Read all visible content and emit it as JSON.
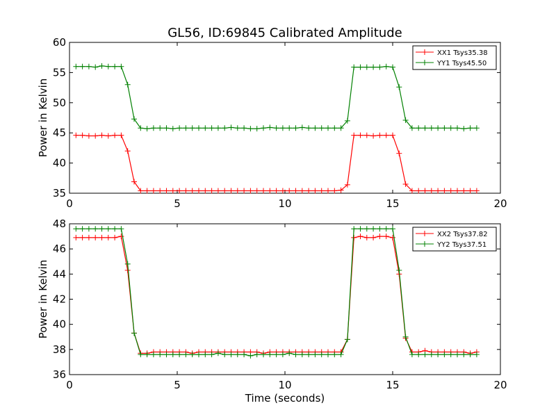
{
  "chart_data": [
    {
      "type": "line",
      "title": "GL56, ID:69845 Calibrated Amplitude",
      "xlabel": "",
      "ylabel": "Power in Kelvin",
      "xlim": [
        0,
        20
      ],
      "ylim": [
        35,
        60
      ],
      "xticks": [
        "0",
        "5",
        "10",
        "15",
        "20"
      ],
      "yticks": [
        "35",
        "40",
        "45",
        "50",
        "55",
        "60"
      ],
      "grid": false,
      "legend_position": "top-right",
      "x": [
        0.3,
        0.6,
        0.9,
        1.2,
        1.5,
        1.8,
        2.1,
        2.4,
        2.7,
        3.0,
        3.3,
        3.6,
        3.9,
        4.2,
        4.5,
        4.8,
        5.1,
        5.4,
        5.7,
        6.0,
        6.3,
        6.6,
        6.9,
        7.2,
        7.5,
        7.8,
        8.1,
        8.4,
        8.7,
        9.0,
        9.3,
        9.6,
        9.9,
        10.2,
        10.5,
        10.8,
        11.1,
        11.4,
        11.7,
        12.0,
        12.3,
        12.6,
        12.9,
        13.2,
        13.5,
        13.8,
        14.1,
        14.4,
        14.7,
        15.0,
        15.3,
        15.6,
        15.9,
        16.2,
        16.5,
        16.8,
        17.1,
        17.4,
        17.7,
        18.0,
        18.3,
        18.6,
        18.9
      ],
      "series": [
        {
          "name": "XX1 Tsys35.38",
          "color": "#ff0000",
          "values": [
            44.6,
            44.6,
            44.5,
            44.5,
            44.6,
            44.5,
            44.6,
            44.6,
            42.0,
            36.9,
            35.4,
            35.4,
            35.4,
            35.4,
            35.4,
            35.4,
            35.4,
            35.4,
            35.4,
            35.4,
            35.4,
            35.4,
            35.4,
            35.4,
            35.4,
            35.4,
            35.4,
            35.4,
            35.4,
            35.4,
            35.4,
            35.4,
            35.4,
            35.4,
            35.4,
            35.4,
            35.4,
            35.4,
            35.4,
            35.4,
            35.4,
            35.5,
            36.4,
            44.6,
            44.6,
            44.6,
            44.5,
            44.6,
            44.6,
            44.6,
            41.6,
            36.5,
            35.4,
            35.4,
            35.4,
            35.4,
            35.4,
            35.4,
            35.4,
            35.4,
            35.4,
            35.4,
            35.4
          ]
        },
        {
          "name": "YY1 Tsys45.50",
          "color": "#008000",
          "values": [
            56.0,
            56.0,
            56.0,
            55.9,
            56.1,
            56.0,
            56.0,
            56.0,
            53.0,
            47.3,
            45.8,
            45.7,
            45.8,
            45.8,
            45.8,
            45.7,
            45.8,
            45.8,
            45.8,
            45.8,
            45.8,
            45.8,
            45.8,
            45.8,
            45.9,
            45.8,
            45.8,
            45.7,
            45.7,
            45.8,
            45.9,
            45.8,
            45.8,
            45.8,
            45.8,
            45.9,
            45.8,
            45.8,
            45.8,
            45.8,
            45.8,
            45.8,
            47.0,
            55.9,
            55.9,
            55.9,
            55.9,
            55.9,
            56.0,
            55.9,
            52.6,
            47.1,
            45.8,
            45.8,
            45.8,
            45.8,
            45.8,
            45.8,
            45.8,
            45.8,
            45.7,
            45.8,
            45.8
          ]
        }
      ]
    },
    {
      "type": "line",
      "title": "",
      "xlabel": "Time (seconds)",
      "ylabel": "Power in Kelvin",
      "xlim": [
        0,
        20
      ],
      "ylim": [
        36,
        48
      ],
      "xticks": [
        "0",
        "5",
        "10",
        "15",
        "20"
      ],
      "yticks": [
        "36",
        "38",
        "40",
        "42",
        "44",
        "46",
        "48"
      ],
      "grid": false,
      "legend_position": "top-right",
      "x": [
        0.3,
        0.6,
        0.9,
        1.2,
        1.5,
        1.8,
        2.1,
        2.4,
        2.7,
        3.0,
        3.3,
        3.6,
        3.9,
        4.2,
        4.5,
        4.8,
        5.1,
        5.4,
        5.7,
        6.0,
        6.3,
        6.6,
        6.9,
        7.2,
        7.5,
        7.8,
        8.1,
        8.4,
        8.7,
        9.0,
        9.3,
        9.6,
        9.9,
        10.2,
        10.5,
        10.8,
        11.1,
        11.4,
        11.7,
        12.0,
        12.3,
        12.6,
        12.9,
        13.2,
        13.5,
        13.8,
        14.1,
        14.4,
        14.7,
        15.0,
        15.3,
        15.6,
        15.9,
        16.2,
        16.5,
        16.8,
        17.1,
        17.4,
        17.7,
        18.0,
        18.3,
        18.6,
        18.9
      ],
      "series": [
        {
          "name": "XX2 Tsys37.82",
          "color": "#ff0000",
          "values": [
            46.9,
            46.9,
            46.9,
            46.9,
            46.9,
            46.9,
            46.9,
            47.0,
            44.3,
            39.3,
            37.7,
            37.7,
            37.8,
            37.8,
            37.8,
            37.8,
            37.8,
            37.8,
            37.7,
            37.8,
            37.8,
            37.8,
            37.8,
            37.8,
            37.8,
            37.8,
            37.8,
            37.8,
            37.8,
            37.7,
            37.8,
            37.8,
            37.8,
            37.8,
            37.8,
            37.8,
            37.8,
            37.8,
            37.8,
            37.8,
            37.8,
            37.8,
            38.8,
            46.9,
            47.0,
            46.9,
            46.9,
            47.0,
            47.0,
            46.9,
            44.0,
            38.9,
            37.8,
            37.8,
            37.9,
            37.8,
            37.8,
            37.8,
            37.8,
            37.8,
            37.8,
            37.7,
            37.8
          ]
        },
        {
          "name": "YY2 Tsys37.51",
          "color": "#008000",
          "values": [
            47.6,
            47.6,
            47.6,
            47.6,
            47.6,
            47.6,
            47.6,
            47.6,
            44.8,
            39.3,
            37.6,
            37.6,
            37.6,
            37.6,
            37.6,
            37.6,
            37.6,
            37.6,
            37.6,
            37.6,
            37.6,
            37.6,
            37.7,
            37.6,
            37.6,
            37.6,
            37.6,
            37.5,
            37.6,
            37.6,
            37.6,
            37.6,
            37.6,
            37.7,
            37.6,
            37.6,
            37.6,
            37.6,
            37.6,
            37.6,
            37.6,
            37.6,
            38.8,
            47.6,
            47.6,
            47.6,
            47.6,
            47.6,
            47.6,
            47.6,
            44.3,
            39.0,
            37.6,
            37.6,
            37.6,
            37.6,
            37.6,
            37.6,
            37.6,
            37.6,
            37.6,
            37.6,
            37.6
          ]
        }
      ]
    }
  ]
}
